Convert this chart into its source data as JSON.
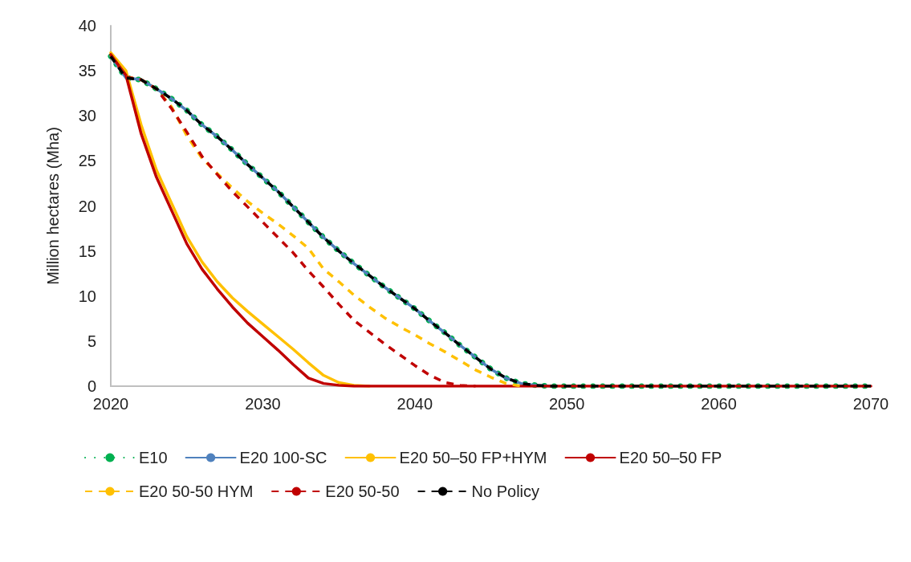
{
  "chart_data": {
    "type": "line",
    "ylabel": "Million hectares (Mha)",
    "x": [
      2020,
      2021,
      2022,
      2023,
      2024,
      2025,
      2026,
      2027,
      2028,
      2029,
      2030,
      2031,
      2032,
      2033,
      2034,
      2035,
      2036,
      2037,
      2038,
      2039,
      2040,
      2041,
      2042,
      2043,
      2044,
      2045,
      2046,
      2047,
      2048,
      2049,
      2050,
      2051,
      2052,
      2053,
      2054,
      2055,
      2056,
      2057,
      2058,
      2059,
      2060,
      2061,
      2062,
      2063,
      2064,
      2065,
      2066,
      2067,
      2068,
      2069,
      2070
    ],
    "xlim": [
      2020,
      2070
    ],
    "xticks": [
      2020,
      2030,
      2040,
      2050,
      2060,
      2070
    ],
    "ylim": [
      0,
      40
    ],
    "yticks": [
      0,
      5,
      10,
      15,
      20,
      25,
      30,
      35,
      40
    ],
    "grid": false,
    "legend": "bottom",
    "marker": "none",
    "series": [
      {
        "name": "E10",
        "color": "#00b050",
        "line_style": "dotted",
        "values": [
          36.6,
          34.2,
          34.0,
          33.0,
          31.9,
          30.6,
          29.0,
          27.7,
          26.2,
          24.6,
          23.1,
          21.6,
          19.9,
          18.2,
          16.5,
          15.0,
          13.6,
          12.3,
          11.0,
          9.8,
          8.6,
          7.2,
          5.9,
          4.5,
          3.2,
          1.9,
          0.9,
          0.3,
          0.1,
          0,
          0,
          0,
          0,
          0,
          0,
          0,
          0,
          0,
          0,
          0,
          0,
          0,
          0,
          0,
          0,
          0,
          0,
          0,
          0,
          0,
          0
        ]
      },
      {
        "name": "E20 100-SC",
        "color": "#4f81bd",
        "line_style": "solid",
        "values": [
          36.6,
          34.2,
          34.0,
          33.0,
          31.9,
          30.6,
          29.0,
          27.7,
          26.2,
          24.6,
          23.1,
          21.6,
          19.9,
          18.2,
          16.5,
          15.0,
          13.6,
          12.3,
          11.0,
          9.8,
          8.6,
          7.2,
          5.9,
          4.5,
          3.2,
          1.9,
          0.9,
          0.3,
          0.1,
          0,
          null,
          null,
          null,
          null,
          null,
          null,
          null,
          null,
          null,
          null,
          null,
          null,
          null,
          null,
          null,
          null,
          null,
          null,
          null,
          null,
          null
        ]
      },
      {
        "name": "E20 50–50 FP+HYM",
        "color": "#ffc000",
        "line_style": "solid",
        "values": [
          37.0,
          35.0,
          29.0,
          24.0,
          20.3,
          16.6,
          13.8,
          11.6,
          9.8,
          8.3,
          6.9,
          5.5,
          4.1,
          2.6,
          1.2,
          0.4,
          0.1,
          0,
          null,
          null,
          null,
          null,
          null,
          null,
          null,
          null,
          null,
          null,
          null,
          null,
          null,
          null,
          null,
          null,
          null,
          null,
          null,
          null,
          null,
          null,
          null,
          null,
          null,
          null,
          null,
          null,
          null,
          null,
          null,
          null,
          null
        ]
      },
      {
        "name": "E20 50–50 FP",
        "color": "#c00000",
        "line_style": "solid",
        "values": [
          36.8,
          34.5,
          28.0,
          23.2,
          19.5,
          15.8,
          13.0,
          10.8,
          8.8,
          7.0,
          5.5,
          4.0,
          2.4,
          0.9,
          0.3,
          0.1,
          0,
          0,
          0,
          0,
          0,
          0,
          0,
          0,
          0,
          0,
          0,
          0,
          0,
          0,
          0,
          0,
          0,
          0,
          0,
          0,
          0,
          0,
          0,
          0,
          0,
          0,
          0,
          0,
          0,
          0,
          0,
          0,
          0,
          0,
          0
        ]
      },
      {
        "name": "E20 50-50 HYM",
        "color": "#ffc000",
        "line_style": "dashed",
        "values": [
          36.8,
          34.3,
          34.0,
          33.0,
          31.0,
          27.8,
          25.3,
          23.6,
          22.0,
          20.5,
          19.2,
          18.0,
          16.7,
          15.3,
          13.0,
          11.6,
          10.1,
          8.8,
          7.6,
          6.6,
          5.7,
          4.7,
          3.8,
          2.8,
          1.8,
          1.0,
          0.3,
          0,
          null,
          null,
          null,
          null,
          null,
          null,
          null,
          null,
          null,
          null,
          null,
          null,
          null,
          null,
          null,
          null,
          null,
          null,
          null,
          null,
          null,
          null,
          null
        ]
      },
      {
        "name": "E20 50-50",
        "color": "#c00000",
        "line_style": "dashed",
        "values": [
          36.8,
          34.3,
          34.0,
          33.0,
          30.8,
          28.2,
          25.5,
          23.5,
          21.6,
          19.9,
          18.2,
          16.5,
          14.8,
          12.8,
          11.0,
          9.1,
          7.3,
          6.0,
          4.7,
          3.5,
          2.3,
          1.2,
          0.4,
          0.1,
          0,
          null,
          null,
          null,
          null,
          null,
          null,
          null,
          null,
          null,
          null,
          null,
          null,
          null,
          null,
          null,
          null,
          null,
          null,
          null,
          null,
          null,
          null,
          null,
          null,
          null,
          null
        ]
      },
      {
        "name": "No Policy",
        "color": "#000000",
        "line_style": "dashed",
        "values": [
          36.6,
          34.2,
          34.0,
          33.0,
          31.9,
          30.6,
          29.0,
          27.7,
          26.2,
          24.6,
          23.1,
          21.6,
          19.9,
          18.2,
          16.5,
          15.0,
          13.6,
          12.3,
          11.0,
          9.8,
          8.6,
          7.2,
          5.9,
          4.5,
          3.2,
          1.9,
          0.9,
          0.3,
          0.1,
          0,
          0,
          0,
          0,
          0,
          0,
          0,
          0,
          0,
          0,
          0,
          0,
          0,
          0,
          0,
          0,
          0,
          0,
          0,
          0,
          0,
          0
        ]
      }
    ]
  }
}
